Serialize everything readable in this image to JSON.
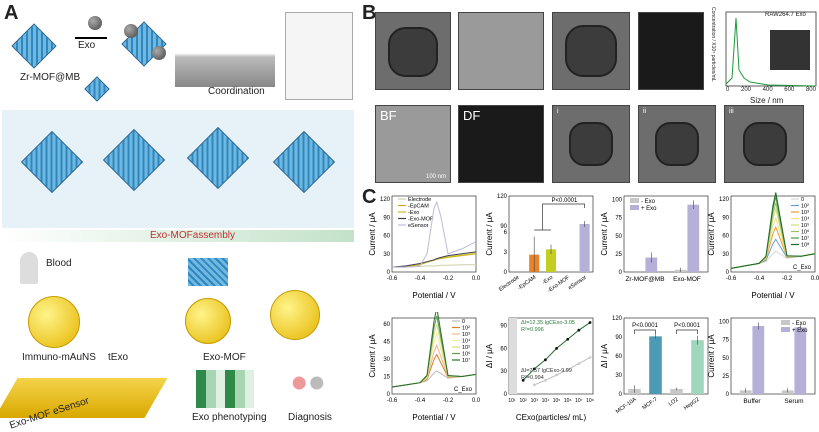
{
  "panelA": {
    "label": "A",
    "exo": "Exo",
    "zrmof": "Zr-MOF@MB",
    "coordination": "Coordination",
    "assembly": "Exo-MOFassembly",
    "blood": "Blood",
    "immuno": "Immuno-mAuNS",
    "texo": "tExo",
    "exomof": "Exo-MOF",
    "esensor": "Exo-MOF eSensor",
    "phenotyping": "Exo phenotyping",
    "diagnosis": "Diagnosis"
  },
  "panelB": {
    "label": "B",
    "bf": "BF",
    "df": "DF",
    "i": "i",
    "ii": "ii",
    "iii": "iii",
    "scale": "100 nm",
    "nta": {
      "legend": "RAW264.7 Exo",
      "ylabel": "Concentration / X10⁸ particles/mL",
      "xlabel": "Size / nm",
      "xticks": [
        "0",
        "200",
        "400",
        "600",
        "800"
      ]
    }
  },
  "panelC": {
    "label": "C"
  },
  "colors": {
    "exo_plus": "#b4b0d8",
    "exo_minus": "#c8c8c8",
    "green": "#1f6b2a",
    "mcf7": "#4d9ab5",
    "hepg2": "#9fd6bd"
  },
  "chart_data": [
    {
      "type": "line",
      "xlabel": "Potential / V",
      "ylabel": "Current / μA",
      "xlim": [
        -0.6,
        0
      ],
      "ylim": [
        0,
        125
      ],
      "xticks": [
        -0.6,
        -0.4,
        -0.2,
        0.0
      ],
      "yticks": [
        0,
        30,
        60,
        90,
        120
      ],
      "x": [
        -0.6,
        -0.5,
        -0.4,
        -0.35,
        -0.3,
        -0.28,
        -0.25,
        -0.2,
        -0.1,
        0
      ],
      "series": [
        {
          "name": "Electrode",
          "color": "#cfcfa8",
          "values": [
            8,
            8,
            9,
            10,
            10,
            10,
            11,
            11,
            12,
            12
          ]
        },
        {
          "name": "-EpCAM",
          "color": "#d9a520",
          "values": [
            8,
            9,
            12,
            16,
            19,
            21,
            22,
            24,
            27,
            30
          ]
        },
        {
          "name": "-Exo",
          "color": "#c9c21c",
          "values": [
            8,
            9,
            13,
            16,
            20,
            22,
            23,
            25,
            28,
            31
          ]
        },
        {
          "name": "-Exo-MOF",
          "color": "#3d3d5a",
          "values": [
            8,
            10,
            14,
            17,
            20,
            22,
            24,
            27,
            30,
            33
          ]
        },
        {
          "name": "eSensor",
          "color": "#bdbbd9",
          "values": [
            8,
            8,
            10,
            30,
            105,
            115,
            90,
            30,
            38,
            50
          ]
        }
      ]
    },
    {
      "type": "bar",
      "broken": true,
      "ylabel": "Current / μA",
      "categories": [
        "Electrode",
        "-EpCAM",
        "-Exo",
        "-Exo-MOF",
        "eSensor"
      ],
      "values": [
        0,
        2.6,
        3.4,
        0,
        92
      ],
      "errors": [
        0,
        2.7,
        0.7,
        0,
        3
      ],
      "colors": [
        "#999",
        "#e8832a",
        "#c5cc22",
        "#999",
        "#b4b0d8"
      ],
      "yticks": [
        0,
        3,
        6,
        90,
        120
      ],
      "annotation": "P<0.0001"
    },
    {
      "type": "grouped-bar",
      "ylabel": "Current / μA",
      "ylim": [
        0,
        105
      ],
      "yticks": [
        0,
        25,
        50,
        75,
        100
      ],
      "categories": [
        "Zr-MOF@MB",
        "Exo-MOF"
      ],
      "series": [
        {
          "name": "- Exo",
          "color": "#c8c8c8",
          "values": [
            0,
            3
          ],
          "errors": [
            0,
            3
          ]
        },
        {
          "name": "+ Exo",
          "color": "#b4b0d8",
          "values": [
            20,
            93
          ],
          "errors": [
            7,
            6
          ]
        }
      ]
    },
    {
      "type": "line",
      "xlabel": "Potential / V",
      "ylabel": "Current / μA",
      "xlim": [
        -0.6,
        0
      ],
      "ylim": [
        0,
        125
      ],
      "xticks": [
        -0.6,
        -0.4,
        -0.2,
        0.0
      ],
      "yticks": [
        0,
        30,
        60,
        90,
        120
      ],
      "legend_title": "C_Exo",
      "x": [
        -0.6,
        -0.5,
        -0.4,
        -0.35,
        -0.3,
        -0.28,
        -0.25,
        -0.2,
        -0.1,
        0
      ],
      "series": [
        {
          "name": "0",
          "color": "#d8d8d8",
          "peak": 15
        },
        {
          "name": "10²",
          "color": "#6a9fc8",
          "peak": 35
        },
        {
          "name": "10³",
          "color": "#e89a3a",
          "peak": 55
        },
        {
          "name": "10⁴",
          "color": "#f1e08a",
          "peak": 70
        },
        {
          "name": "10⁵",
          "color": "#d3dc7a",
          "peak": 85
        },
        {
          "name": "10⁶",
          "color": "#9fc06a",
          "peak": 95
        },
        {
          "name": "10⁷",
          "color": "#4f9a45",
          "peak": 105
        },
        {
          "name": "10⁸",
          "color": "#1f6b2a",
          "peak": 112
        }
      ]
    },
    {
      "type": "line",
      "xlabel": "Potential / V",
      "ylabel": "Current / μA",
      "xlim": [
        -0.6,
        0
      ],
      "ylim": [
        0,
        65
      ],
      "xticks": [
        -0.6,
        -0.4,
        -0.2,
        0.0
      ],
      "yticks": [
        0,
        15,
        30,
        45,
        60
      ],
      "legend_title": "C_Exo",
      "x": [
        -0.6,
        -0.5,
        -0.4,
        -0.35,
        -0.3,
        -0.28,
        -0.25,
        -0.2,
        -0.1,
        0
      ],
      "series": [
        {
          "name": "0",
          "color": "#bdbdbd",
          "peak": 8
        },
        {
          "name": "10²",
          "color": "#d9822b",
          "peak": 22
        },
        {
          "name": "10³",
          "color": "#f0b58a",
          "peak": 30
        },
        {
          "name": "10⁴",
          "color": "#f3e6a0",
          "peak": 40
        },
        {
          "name": "10⁵",
          "color": "#d8e07a",
          "peak": 48
        },
        {
          "name": "10⁶",
          "color": "#5f9b4a",
          "peak": 55
        },
        {
          "name": "10⁷",
          "color": "#2a6e2e",
          "peak": 62
        }
      ]
    },
    {
      "type": "scatter",
      "xlabel": "C_Exo(particles/ mL)",
      "ylabel": "ΔI / μA",
      "xlog": true,
      "xlim": [
        1,
        8
      ],
      "ylim": [
        0,
        100
      ],
      "yticks": [
        0,
        30,
        60,
        90
      ],
      "xticks": [
        "10¹",
        "10²",
        "10³",
        "10⁴",
        "10⁵",
        "10⁶",
        "10⁷",
        "10⁸"
      ],
      "series": [
        {
          "color": "#1f6b2a",
          "x": [
            2,
            3,
            4,
            5,
            6,
            7,
            8
          ],
          "values": [
            18,
            33,
            45,
            60,
            72,
            84,
            94
          ],
          "fit": "ΔI=12.35 lgC_Exo-3.05",
          "r2": "R²=0.996"
        },
        {
          "color": "#bdbdbd",
          "x": [
            3,
            4,
            5,
            6,
            7,
            8
          ],
          "values": [
            12,
            18,
            25,
            32,
            40,
            48
          ],
          "fit": "ΔI=7.57 lgC_Exo-9.99",
          "r2": "R²=0.994"
        }
      ]
    },
    {
      "type": "bar",
      "ylabel": "ΔI / μA",
      "ylim": [
        0,
        120
      ],
      "yticks": [
        0,
        30,
        60,
        90,
        120
      ],
      "categories": [
        "MCF-10A",
        "MCF-7",
        "LO2",
        "HepG2"
      ],
      "values": [
        8,
        91,
        8,
        85
      ],
      "errors": [
        6,
        4,
        2,
        7
      ],
      "colors": [
        "#c8c8c8",
        "#4d9ab5",
        "#c8c8c8",
        "#9fd6bd"
      ],
      "annotations": [
        "P<0.0001",
        "P<0.0001"
      ]
    },
    {
      "type": "grouped-bar",
      "ylabel": "Current / μA",
      "ylim": [
        0,
        105
      ],
      "yticks": [
        0,
        25,
        50,
        75,
        100
      ],
      "categories": [
        "Buffer",
        "Serum"
      ],
      "series": [
        {
          "name": "- Exo",
          "color": "#c8c8c8",
          "values": [
            5,
            5
          ],
          "errors": [
            3,
            3
          ]
        },
        {
          "name": "+ Exo",
          "color": "#b4b0d8",
          "values": [
            94,
            92
          ],
          "errors": [
            5,
            4
          ]
        }
      ]
    }
  ]
}
